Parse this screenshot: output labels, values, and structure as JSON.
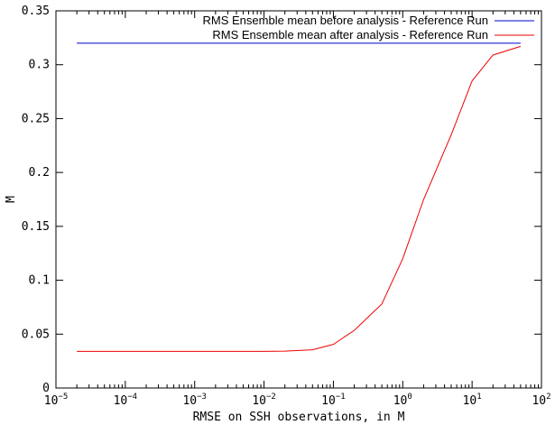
{
  "chart_data": {
    "type": "line",
    "title": "",
    "xlabel": "RMSE on SSH observations, in M",
    "ylabel": "M",
    "xscale": "log",
    "xlim": [
      1e-05,
      100
    ],
    "ylim": [
      0,
      0.35
    ],
    "grid": false,
    "legend_position": "top-right",
    "x_ticks": [
      {
        "base": "10",
        "exp": "−5",
        "value": 1e-05
      },
      {
        "base": "10",
        "exp": "−4",
        "value": 0.0001
      },
      {
        "base": "10",
        "exp": "−3",
        "value": 0.001
      },
      {
        "base": "10",
        "exp": "−2",
        "value": 0.01
      },
      {
        "base": "10",
        "exp": "−1",
        "value": 0.1
      },
      {
        "base": "10",
        "exp": "0",
        "value": 1
      },
      {
        "base": "10",
        "exp": "1",
        "value": 10
      },
      {
        "base": "10",
        "exp": "2",
        "value": 100
      }
    ],
    "y_ticks": [
      {
        "label": "0",
        "value": 0
      },
      {
        "label": "0.05",
        "value": 0.05
      },
      {
        "label": "0.1",
        "value": 0.1
      },
      {
        "label": "0.15",
        "value": 0.15
      },
      {
        "label": "0.2",
        "value": 0.2
      },
      {
        "label": "0.25",
        "value": 0.25
      },
      {
        "label": "0.3",
        "value": 0.3
      },
      {
        "label": "0.35",
        "value": 0.35
      }
    ],
    "series": [
      {
        "name": "RMS Ensemble mean before analysis - Reference Run",
        "color": "#0000cc",
        "x": [
          2e-05,
          50
        ],
        "y": [
          0.32,
          0.32
        ]
      },
      {
        "name": "RMS Ensemble mean after analysis - Reference Run",
        "color": "#ee0000",
        "x": [
          2e-05,
          5e-05,
          0.0001,
          0.001,
          0.01,
          0.02,
          0.05,
          0.1,
          0.2,
          0.5,
          1,
          2,
          5,
          10,
          20,
          50
        ],
        "y": [
          0.034,
          0.034,
          0.034,
          0.034,
          0.034,
          0.0342,
          0.0355,
          0.0405,
          0.0535,
          0.078,
          0.12,
          0.175,
          0.235,
          0.285,
          0.309,
          0.317
        ]
      }
    ]
  }
}
